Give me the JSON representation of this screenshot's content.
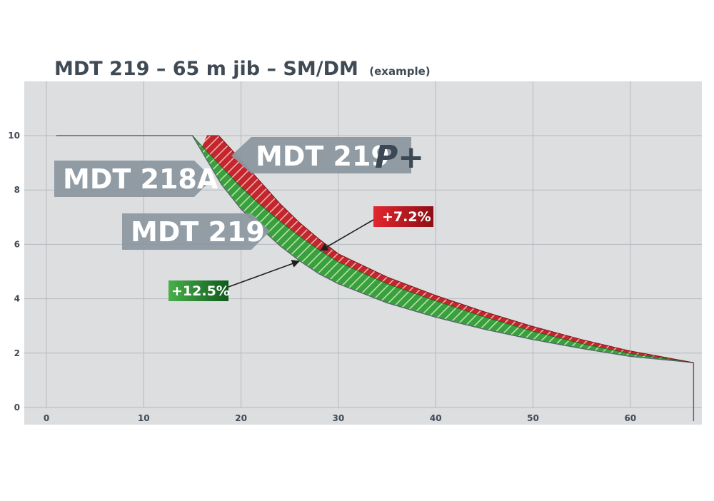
{
  "chart_data": {
    "type": "area",
    "title": "MDT 219 – 65 m jib – SM/DM",
    "subtitle": "(example)",
    "xlabel": "",
    "ylabel": "",
    "xlim": [
      -2,
      67
    ],
    "ylim": [
      -0.6,
      12
    ],
    "x_ticks": [
      0,
      10,
      20,
      30,
      40,
      50,
      60
    ],
    "y_ticks": [
      0,
      2,
      4,
      6,
      8,
      10
    ],
    "grid": true,
    "series": [
      {
        "name": "MDT 218A",
        "color": "#5b6670",
        "x": [
          1,
          15,
          18,
          20,
          22,
          24,
          26,
          28,
          30,
          35,
          40,
          45,
          50,
          55,
          60,
          66.5
        ],
        "y": [
          10,
          10,
          8.2,
          7.3,
          6.6,
          5.95,
          5.4,
          4.92,
          4.55,
          3.85,
          3.32,
          2.88,
          2.5,
          2.17,
          1.88,
          1.65
        ]
      },
      {
        "name": "MDT 219",
        "color": "#3a9c3a",
        "x": [
          15,
          16,
          18,
          20,
          22,
          24,
          26,
          28,
          30,
          35,
          40,
          45,
          50,
          55,
          60,
          66.5
        ],
        "y": [
          10,
          9.6,
          8.85,
          8.1,
          7.45,
          6.85,
          6.3,
          5.8,
          5.35,
          4.55,
          3.92,
          3.33,
          2.8,
          2.35,
          1.98,
          1.65
        ]
      },
      {
        "name": "MDT 219 P+",
        "color": "#c0282d",
        "x": [
          16.5,
          17.7,
          20,
          22,
          24,
          26,
          28,
          30,
          35,
          40,
          45,
          50,
          55,
          60,
          66.5
        ],
        "y": [
          10,
          10,
          9.1,
          8.3,
          7.5,
          6.8,
          6.2,
          5.65,
          4.8,
          4.12,
          3.52,
          2.98,
          2.5,
          2.08,
          1.65
        ]
      }
    ],
    "annotations": [
      {
        "text": "MDT 219",
        "plus_mark": "P+",
        "target": "MDT 219 P+",
        "color": "#8c98a1"
      },
      {
        "text": "MDT 218A",
        "target": "MDT 218A",
        "color": "#8c98a1"
      },
      {
        "text": "MDT 219",
        "target": "MDT 219",
        "color": "#8c98a1"
      },
      {
        "text": "+7.2%",
        "color": "#c0202a",
        "points_to": [
          27.5,
          5.6
        ]
      },
      {
        "text": "+12.5%",
        "color": "#2e8b2e",
        "points_to": [
          26,
          5.4
        ]
      }
    ]
  }
}
